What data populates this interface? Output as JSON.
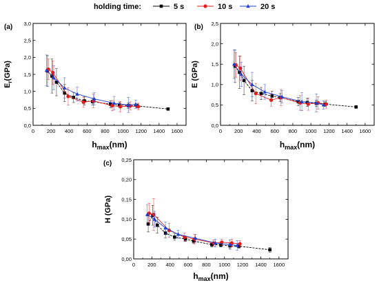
{
  "legend": {
    "title": "holding time:",
    "items": [
      {
        "label": "5 s",
        "color": "#000000",
        "marker": "square"
      },
      {
        "label": "10 s",
        "color": "#e41a1c",
        "marker": "circle"
      },
      {
        "label": "20 s",
        "color": "#1f3fd1",
        "marker": "triangle"
      }
    ]
  },
  "chart_data": [
    {
      "panel": "(a)",
      "type": "scatter",
      "ylabel_main": "E",
      "ylabel_sub": "r",
      "ylabel_unit": "(GPa)",
      "xlabel_main": "h",
      "xlabel_sub": "max",
      "xlabel_unit": "(nm)",
      "xlim": [
        0,
        1700
      ],
      "ylim": [
        0,
        3.0
      ],
      "xticks": [
        0,
        200,
        400,
        600,
        800,
        1000,
        1200,
        1400,
        1600
      ],
      "yticks": [
        0,
        0.5,
        1.0,
        1.5,
        2.0,
        2.5,
        3.0
      ],
      "ytick_labels": [
        "0,0",
        "0,5",
        "1,0",
        "1,5",
        "2,0",
        "2,5",
        "3,0"
      ],
      "series": [
        {
          "name": "5 s",
          "x": [
            160,
            210,
            260,
            350,
            450,
            570,
            660,
            860,
            960,
            1060,
            1160,
            1500
          ],
          "y": [
            1.6,
            1.45,
            1.27,
            0.95,
            0.82,
            0.72,
            0.7,
            0.62,
            0.6,
            0.58,
            0.57,
            0.48
          ],
          "err": [
            0.45,
            0.5,
            0.4,
            0.25,
            0.15,
            0.12,
            0.1,
            0.1,
            0.08,
            0.08,
            0.06,
            0.02
          ]
        },
        {
          "name": "10 s",
          "x": [
            170,
            220,
            390,
            560,
            670,
            880,
            970,
            1080,
            1170
          ],
          "y": [
            1.65,
            1.55,
            0.85,
            0.68,
            0.72,
            0.58,
            0.55,
            0.57,
            0.55
          ],
          "err": [
            0.3,
            0.35,
            0.25,
            0.15,
            0.2,
            0.15,
            0.15,
            0.12,
            0.1
          ]
        },
        {
          "name": "20 s",
          "x": [
            150,
            230,
            350,
            490,
            680,
            900,
            1060,
            1140
          ],
          "y": [
            1.62,
            1.4,
            1.1,
            0.92,
            0.78,
            0.65,
            0.6,
            0.62
          ],
          "err": [
            0.45,
            0.35,
            0.3,
            0.2,
            0.18,
            0.2,
            0.22,
            0.12
          ]
        }
      ]
    },
    {
      "panel": "(b)",
      "type": "scatter",
      "ylabel_main": "E (GPa)",
      "ylabel_sub": "",
      "ylabel_unit": "",
      "xlabel_main": "h",
      "xlabel_sub": "max",
      "xlabel_unit": "(nm)",
      "xlim": [
        0,
        1700
      ],
      "ylim": [
        0,
        2.5
      ],
      "xticks": [
        0,
        200,
        400,
        600,
        800,
        1000,
        1200,
        1400,
        1600
      ],
      "yticks": [
        0,
        0.5,
        1.0,
        1.5,
        2.0,
        2.5
      ],
      "ytick_labels": [
        "0,0",
        "0,5",
        "1,0",
        "1,5",
        "2,0",
        "2,5"
      ],
      "series": [
        {
          "name": "5 s",
          "x": [
            160,
            210,
            260,
            350,
            450,
            570,
            660,
            860,
            960,
            1060,
            1160,
            1500
          ],
          "y": [
            1.45,
            1.3,
            1.1,
            0.85,
            0.78,
            0.72,
            0.68,
            0.58,
            0.56,
            0.54,
            0.52,
            0.45
          ],
          "err": [
            0.4,
            0.4,
            0.35,
            0.25,
            0.15,
            0.12,
            0.1,
            0.1,
            0.1,
            0.08,
            0.06,
            0.02
          ]
        },
        {
          "name": "10 s",
          "x": [
            170,
            220,
            390,
            560,
            670,
            880,
            970,
            1080,
            1170
          ],
          "y": [
            1.48,
            1.4,
            0.78,
            0.62,
            0.68,
            0.55,
            0.52,
            0.55,
            0.52
          ],
          "err": [
            0.3,
            0.3,
            0.25,
            0.15,
            0.2,
            0.18,
            0.15,
            0.15,
            0.1
          ]
        },
        {
          "name": "20 s",
          "x": [
            150,
            230,
            350,
            490,
            680,
            900,
            1060,
            1140
          ],
          "y": [
            1.5,
            1.25,
            1.0,
            0.82,
            0.7,
            0.58,
            0.55,
            0.5
          ],
          "err": [
            0.35,
            0.3,
            0.3,
            0.18,
            0.15,
            0.22,
            0.22,
            0.1
          ]
        }
      ]
    },
    {
      "panel": "(c)",
      "type": "scatter",
      "ylabel_main": "H (GPa)",
      "ylabel_sub": "",
      "ylabel_unit": "",
      "xlabel_main": "h",
      "xlabel_sub": "max",
      "xlabel_unit": "(nm)",
      "xlim": [
        0,
        1700
      ],
      "ylim": [
        0,
        0.25
      ],
      "xticks": [
        0,
        200,
        400,
        600,
        800,
        1000,
        1200,
        1400,
        1600
      ],
      "yticks": [
        0,
        0.05,
        0.1,
        0.15,
        0.2,
        0.25
      ],
      "ytick_labels": [
        "0,00",
        "0,05",
        "0,10",
        "0,15",
        "0,20",
        "0,25"
      ],
      "series": [
        {
          "name": "5 s",
          "x": [
            160,
            210,
            260,
            350,
            450,
            570,
            660,
            860,
            960,
            1060,
            1160,
            1500
          ],
          "y": [
            0.088,
            0.11,
            0.085,
            0.065,
            0.055,
            0.05,
            0.045,
            0.036,
            0.035,
            0.033,
            0.032,
            0.023
          ],
          "err": [
            0.02,
            0.025,
            0.02,
            0.012,
            0.008,
            0.006,
            0.006,
            0.006,
            0.005,
            0.006,
            0.005,
            0.006
          ]
        },
        {
          "name": "10 s",
          "x": [
            170,
            220,
            390,
            560,
            670,
            880,
            970,
            1080,
            1170
          ],
          "y": [
            0.115,
            0.112,
            0.072,
            0.055,
            0.05,
            0.04,
            0.042,
            0.04,
            0.038
          ],
          "err": [
            0.025,
            0.04,
            0.018,
            0.01,
            0.012,
            0.008,
            0.008,
            0.01,
            0.008
          ]
        },
        {
          "name": "20 s",
          "x": [
            150,
            230,
            350,
            490,
            680,
            900,
            1060,
            1140
          ],
          "y": [
            0.112,
            0.1,
            0.078,
            0.062,
            0.052,
            0.04,
            0.036,
            0.034
          ],
          "err": [
            0.025,
            0.02,
            0.015,
            0.01,
            0.01,
            0.01,
            0.012,
            0.012
          ]
        }
      ]
    }
  ]
}
